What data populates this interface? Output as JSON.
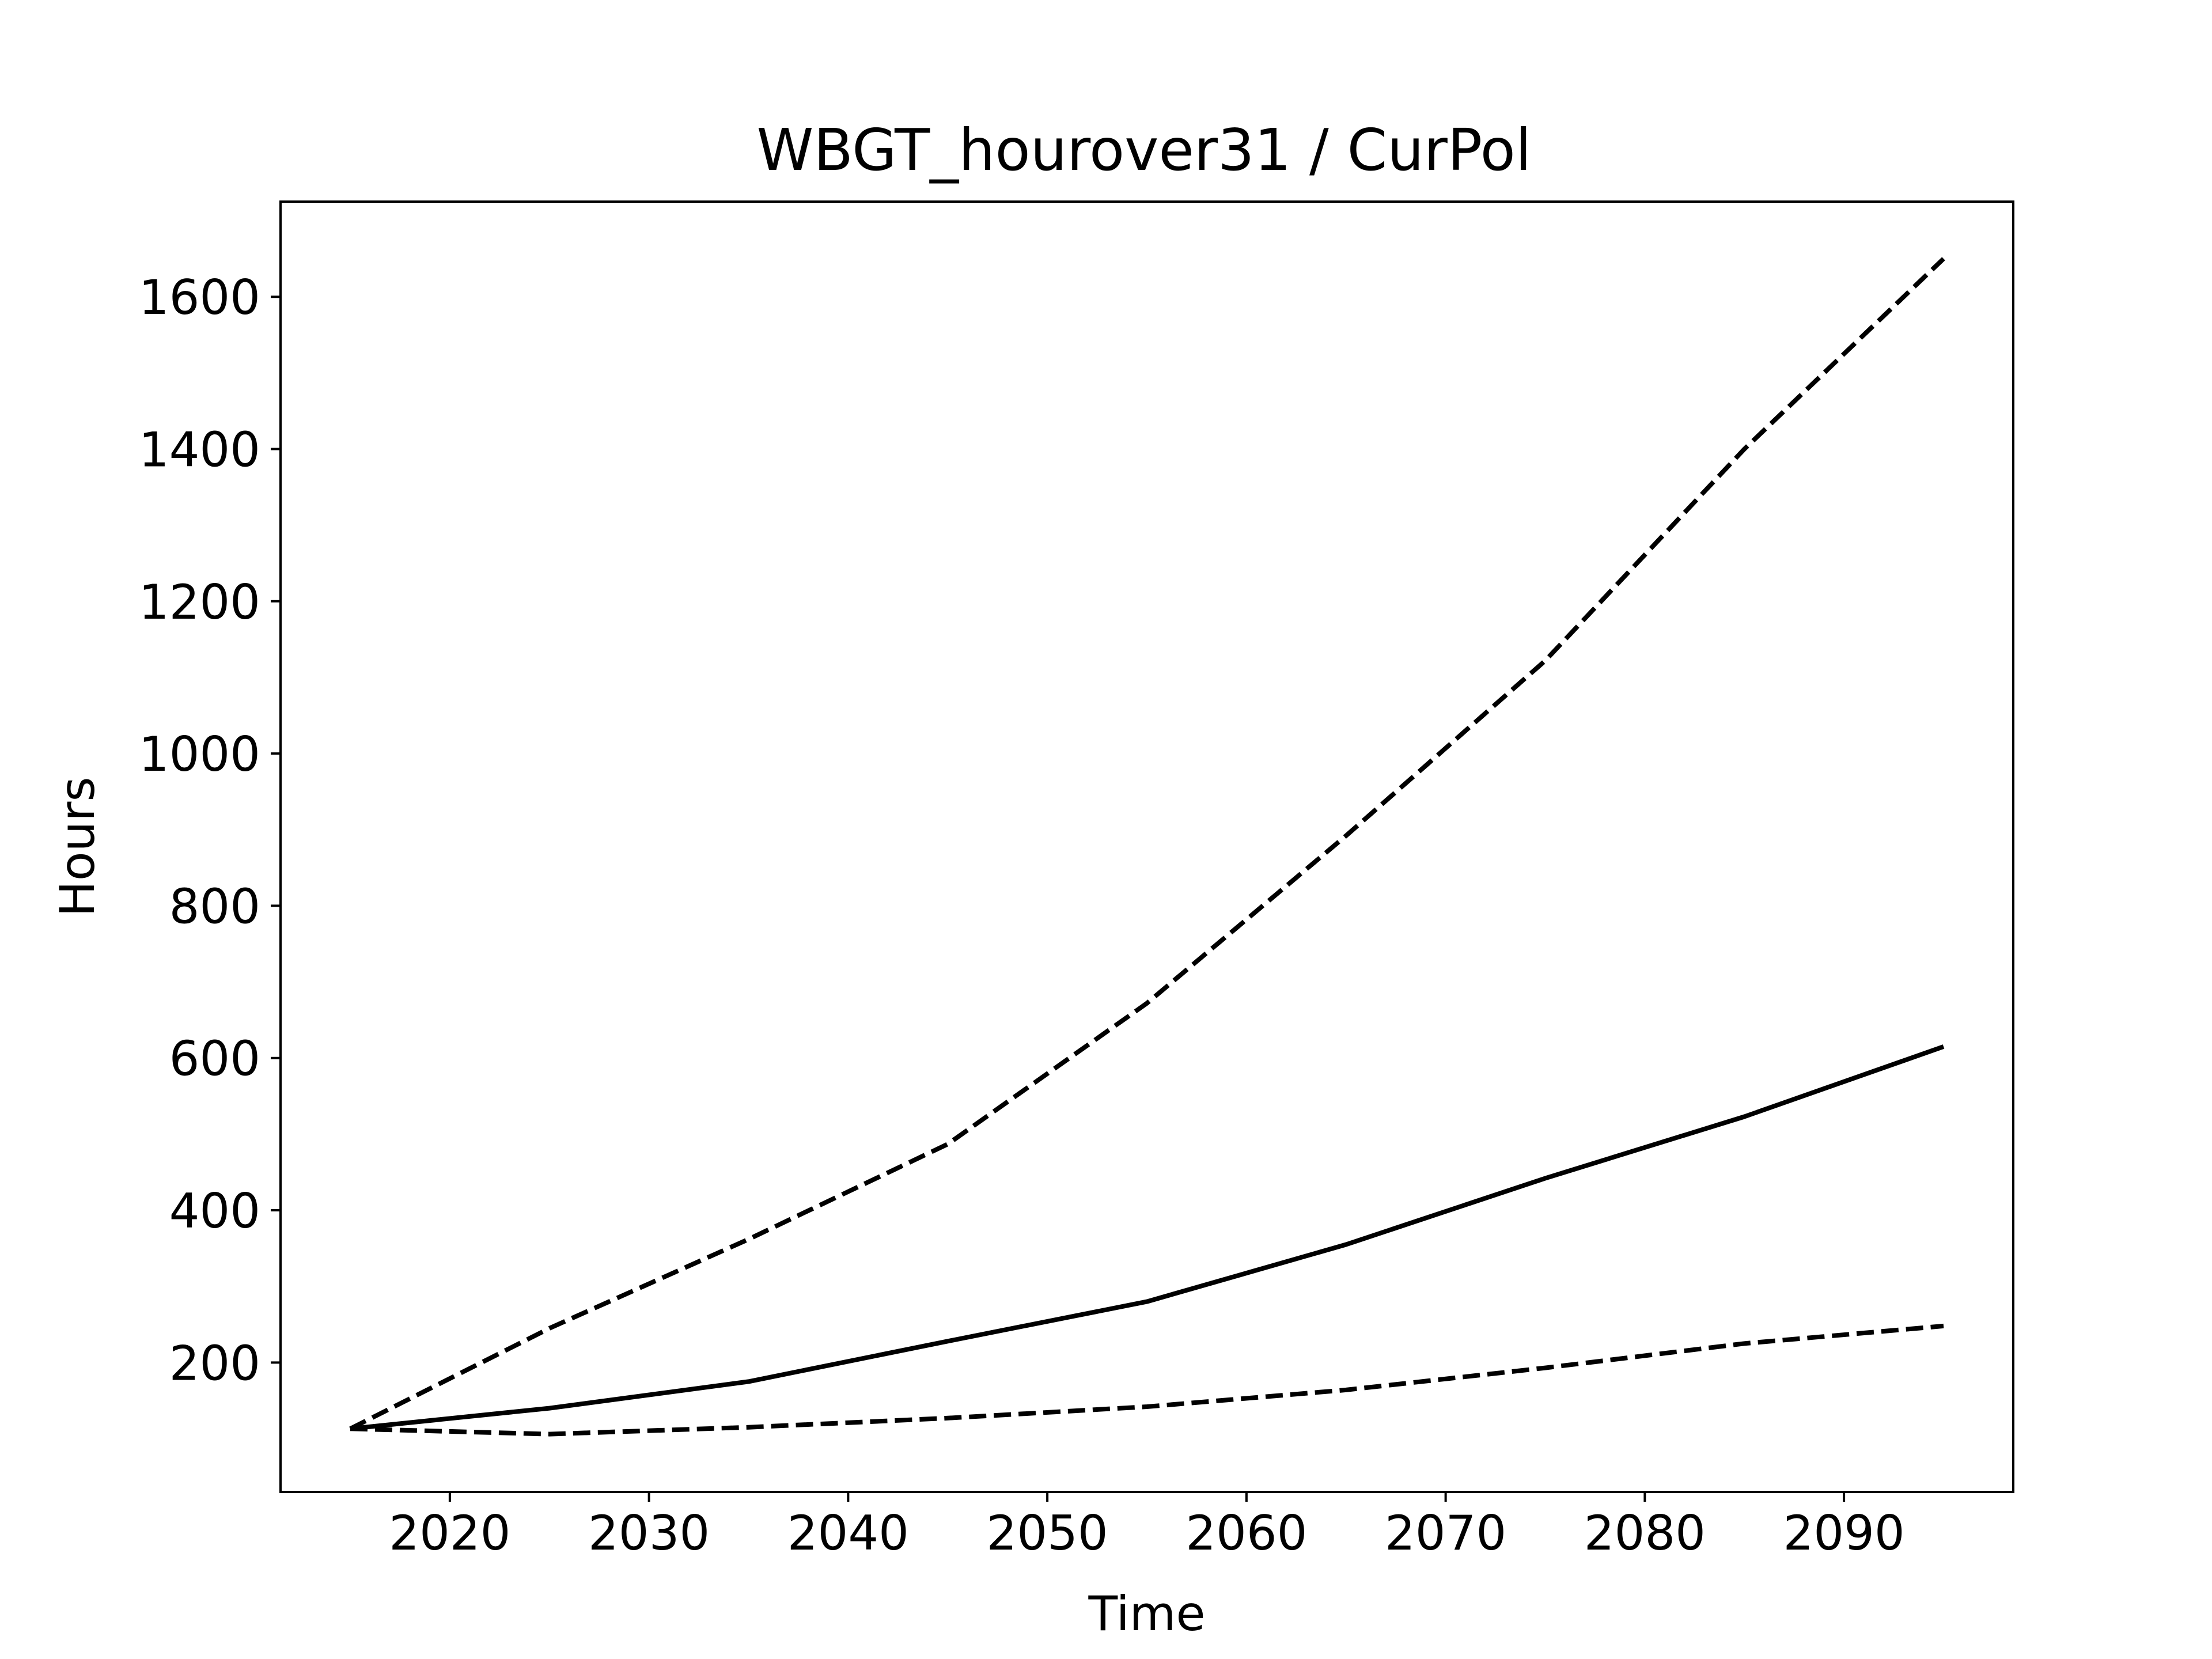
{
  "chart_data": {
    "type": "line",
    "title": "WBGT_hourover31 / CurPol",
    "xlabel": "Time",
    "ylabel": "Hours",
    "xlim": [
      2011.5,
      2098.5
    ],
    "ylim": [
      30,
      1725
    ],
    "xticks": [
      2020,
      2030,
      2040,
      2050,
      2060,
      2070,
      2080,
      2090
    ],
    "yticks": [
      200,
      400,
      600,
      800,
      1000,
      1200,
      1400,
      1600
    ],
    "grid": false,
    "legend": "none",
    "x": [
      2015,
      2025,
      2035,
      2045,
      2055,
      2065,
      2075,
      2085,
      2095
    ],
    "series": [
      {
        "style": "dashed",
        "color": "#000000",
        "values": [
          113,
          245,
          362,
          487,
          672,
          892,
          1122,
          1400,
          1650
        ]
      },
      {
        "style": "solid",
        "color": "#000000",
        "values": [
          113,
          140,
          175,
          228,
          280,
          355,
          442,
          523,
          615
        ]
      },
      {
        "style": "dashed",
        "color": "#000000",
        "values": [
          113,
          106,
          115,
          127,
          142,
          164,
          193,
          225,
          248
        ]
      }
    ]
  }
}
